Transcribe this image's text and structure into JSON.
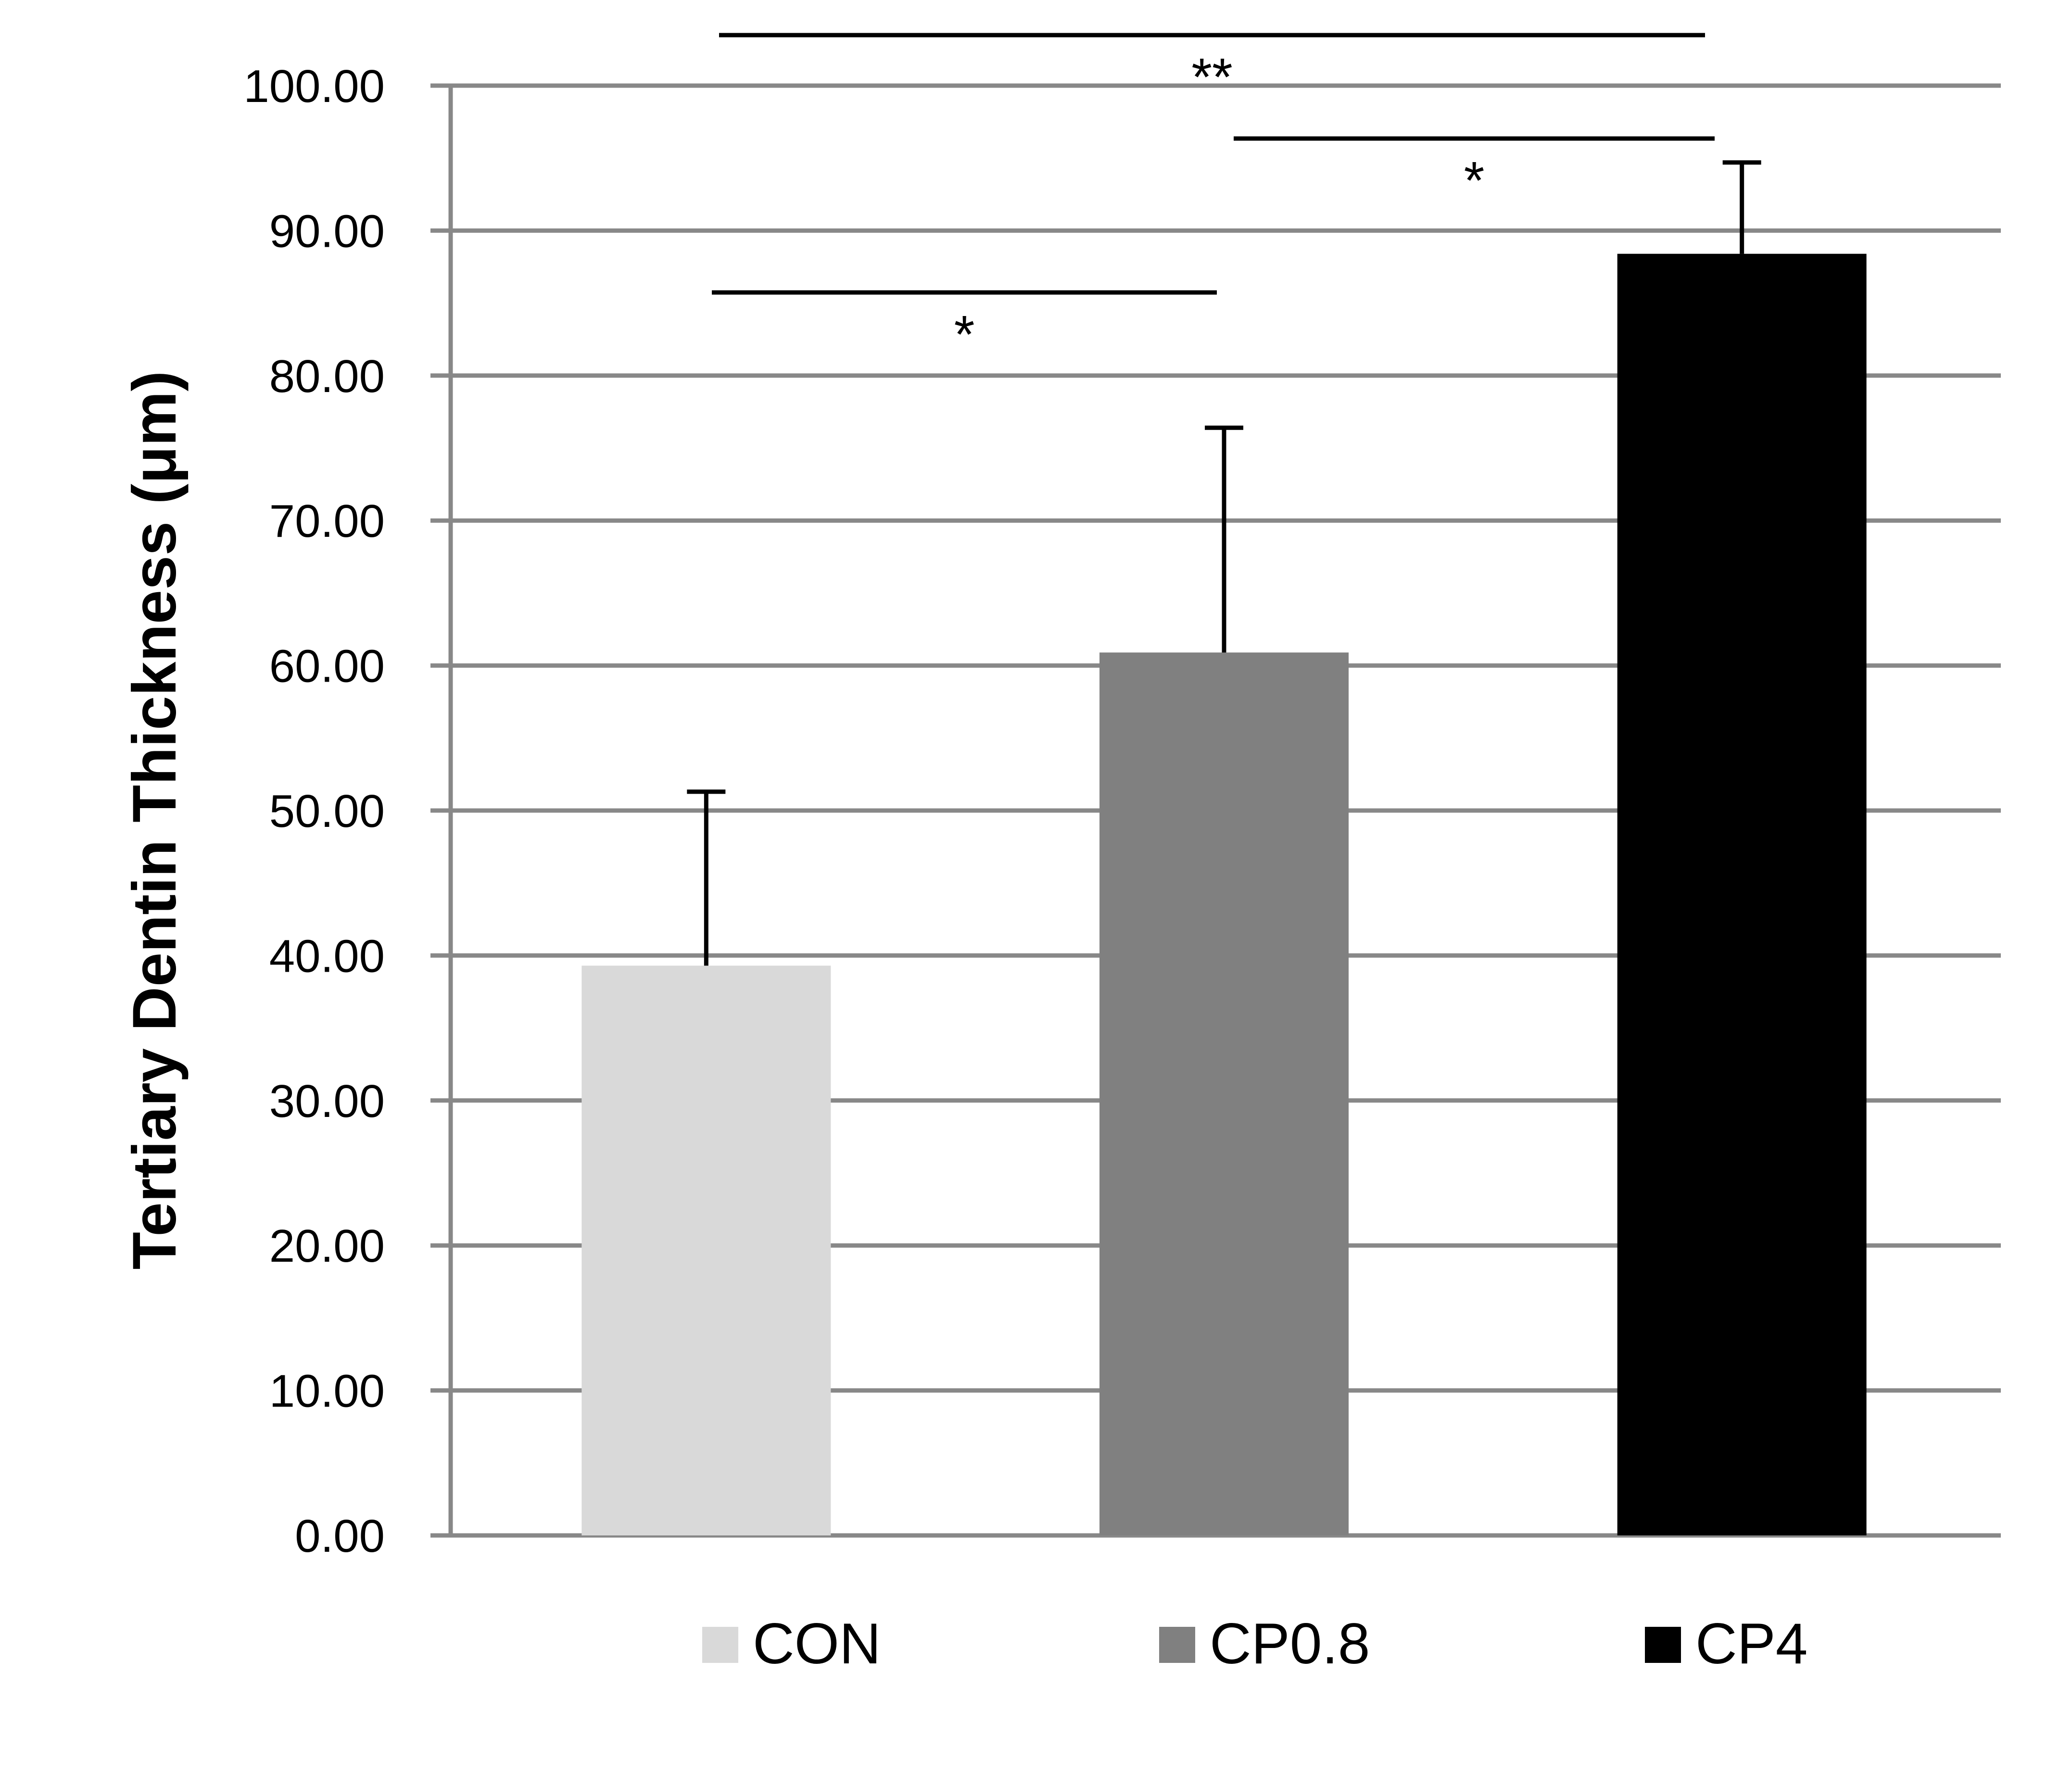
{
  "chart_data": {
    "type": "bar",
    "title": "",
    "xlabel": "",
    "ylabel": "Tertiary Dentin Thickness (μm)",
    "ylim": [
      0,
      100
    ],
    "ytick_step": 10,
    "ytick_decimals": 2,
    "grid": true,
    "legend_position": "bottom",
    "categories": [
      "CON",
      "CP0.8",
      "CP4"
    ],
    "values": [
      39.3,
      60.9,
      88.4
    ],
    "error_bars": [
      12.0,
      15.5,
      6.3
    ],
    "colors": [
      "#d9d9d9",
      "#808080",
      "#000000"
    ],
    "grid_color": "#888888",
    "significance": [
      {
        "from": 0,
        "to": 1,
        "label": "*"
      },
      {
        "from": 1,
        "to": 2,
        "label": "*"
      },
      {
        "from": 0,
        "to": 2,
        "label": "**"
      }
    ]
  }
}
